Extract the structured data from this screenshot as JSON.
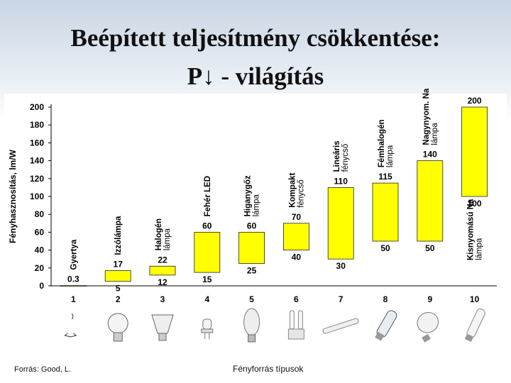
{
  "title_line1": "Beépített teljesítmény csökkentése:",
  "title_line2": "P↓ - világítás",
  "source": "Forrás: Good, L.",
  "chart_data": {
    "type": "bar",
    "xlabel": "Fényforrás típusok",
    "ylabel": "Fényhasznosítás, lm/W",
    "ylim": [
      0,
      200
    ],
    "yticks": [
      0,
      20,
      40,
      60,
      80,
      100,
      120,
      140,
      160,
      180,
      200
    ],
    "grid": false,
    "bar_color": "#ffff00",
    "categories": [
      "1",
      "2",
      "3",
      "4",
      "5",
      "6",
      "7",
      "8",
      "9",
      "10"
    ],
    "bars": [
      {
        "category": "1",
        "name": "Gyertya",
        "low": 0,
        "high": 0.3,
        "low_label": "",
        "high_label": "0.3"
      },
      {
        "category": "2",
        "name": "Izzólámpa",
        "low": 5,
        "high": 17,
        "low_label": "5",
        "high_label": "17"
      },
      {
        "category": "3",
        "name": "Halogén lámpa",
        "low": 12,
        "high": 22,
        "low_label": "12",
        "high_label": "22"
      },
      {
        "category": "4",
        "name": "Fehér LED",
        "low": 15,
        "high": 60,
        "low_label": "15",
        "high_label": "60"
      },
      {
        "category": "5",
        "name": "Higanygőz lámpa",
        "low": 25,
        "high": 60,
        "low_label": "25",
        "high_label": "60"
      },
      {
        "category": "6",
        "name": "Kompakt fénycső",
        "low": 40,
        "high": 70,
        "low_label": "40",
        "high_label": "70"
      },
      {
        "category": "7",
        "name": "Lineáris fénycső",
        "low": 30,
        "high": 110,
        "low_label": "30",
        "high_label": "110"
      },
      {
        "category": "8",
        "name": "Fémhalogén lámpa",
        "low": 50,
        "high": 115,
        "low_label": "50",
        "high_label": "115"
      },
      {
        "category": "9",
        "name": "Nagynyom. Na lámpa",
        "low": 50,
        "high": 140,
        "low_label": "50",
        "high_label": "140"
      },
      {
        "category": "10",
        "name": "Kisnyomású Na lámpa",
        "low": 100,
        "high": 200,
        "low_label": "100",
        "high_label": "200"
      }
    ],
    "icons": [
      "candle-icon",
      "incandescent-bulb-icon",
      "halogen-reflector-icon",
      "led-lamp-icon",
      "mercury-vapor-lamp-icon",
      "compact-fluorescent-icon",
      "linear-tube-icon",
      "metal-halide-lamp-icon",
      "high-pressure-sodium-lamp-icon",
      "low-pressure-sodium-lamp-icon"
    ]
  }
}
